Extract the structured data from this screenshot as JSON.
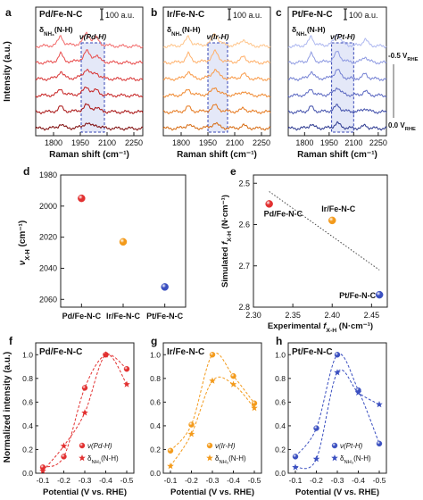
{
  "chart_data": [
    {
      "panel": "a",
      "type": "line",
      "title": "Pd/Fe-N-C",
      "scale_bar": "100 a.u.",
      "xlabel": "Raman shift (cm⁻¹)",
      "ylabel": "Intensity (a.u.)",
      "xlim": [
        1700,
        2300
      ],
      "xticks": [
        1800,
        1950,
        2100,
        2250
      ],
      "band_label": "ν(Pd-H)",
      "band_range": [
        1955,
        2085
      ],
      "peak_label": "δᵃNH₃(N-H)",
      "peak_positions": [
        1840,
        1985,
        2040
      ],
      "trace_count": 6,
      "colors": [
        "#f26b6b",
        "#e84a4a",
        "#d83333",
        "#c62020",
        "#a81111",
        "#7d0808"
      ]
    },
    {
      "panel": "b",
      "type": "line",
      "title": "Ir/Fe-N-C",
      "scale_bar": "100 a.u.",
      "xlabel": "Raman shift (cm⁻¹)",
      "xlim": [
        1700,
        2300
      ],
      "xticks": [
        1800,
        1950,
        2100,
        2250
      ],
      "band_label": "ν(Ir-H)",
      "band_range": [
        1950,
        2060
      ],
      "peak_label": "δᵃNH₃(N-H)",
      "peak_positions": [
        1840,
        1990,
        2150
      ],
      "trace_count": 6,
      "colors": [
        "#ffc58a",
        "#ffb06a",
        "#f99a48",
        "#f08930",
        "#e6791f",
        "#d66a10"
      ]
    },
    {
      "panel": "c",
      "type": "line",
      "title": "Pt/Fe-N-C",
      "scale_bar": "100 a.u.",
      "xlabel": "Raman shift (cm⁻¹)",
      "xlim": [
        1700,
        2300
      ],
      "xticks": [
        1800,
        1950,
        2100,
        2250
      ],
      "band_label": "ν(Pt-H)",
      "band_range": [
        1965,
        2100
      ],
      "peak_label": "δᵃNH₃(N-H)",
      "peak_positions": [
        1840,
        2000,
        2170
      ],
      "trace_count": 6,
      "top_potential": "-0.5 V",
      "top_potential_sub": "RHE",
      "bottom_potential": "0.0 V",
      "bottom_potential_sub": "RHE",
      "colors": [
        "#aeb8f0",
        "#8f9be2",
        "#7481d3",
        "#5b68c1",
        "#4250ab",
        "#2a378f"
      ]
    },
    {
      "panel": "d",
      "type": "scatter",
      "ylabel": "ν",
      "ylabel_sub": "X-H",
      "ylabel_unit": "(cm⁻¹)",
      "categories": [
        "Pd/Fe-N-C",
        "Ir/Fe-N-C",
        "Pt/Fe-N-C"
      ],
      "values": [
        1995,
        2023,
        2052
      ],
      "ylim": [
        1980,
        2065
      ],
      "y_inverted": true,
      "yticks": [
        1980,
        2000,
        2020,
        2040,
        2060
      ],
      "colors": [
        "#e23030",
        "#f39a1b",
        "#3a4fc0"
      ]
    },
    {
      "panel": "e",
      "type": "scatter",
      "xlabel": "Experimental",
      "xlabel_sym": "f",
      "xlabel_sub": "X-H",
      "xlabel_unit": "(N·cm⁻¹)",
      "ylabel": "Simulated",
      "ylabel_sym": "f",
      "ylabel_sub": "X-H",
      "ylabel_unit": "(N·cm⁻¹)",
      "xlim": [
        2.3,
        2.47
      ],
      "ylim": [
        2.48,
        2.8
      ],
      "y_inverted": true,
      "xticks": [
        2.3,
        2.35,
        2.4,
        2.45
      ],
      "yticks": [
        2.5,
        2.6,
        2.7,
        2.8
      ],
      "points": [
        {
          "label": "Pd/Fe-N-C",
          "x": 2.32,
          "y": 2.55,
          "color": "#e23030"
        },
        {
          "label": "Ir/Fe-N-C",
          "x": 2.4,
          "y": 2.59,
          "color": "#f39a1b"
        },
        {
          "label": "Pt/Fe-N-C",
          "x": 2.46,
          "y": 2.77,
          "color": "#3a4fc0"
        }
      ],
      "trend_line": [
        [
          2.32,
          2.52
        ],
        [
          2.46,
          2.71
        ]
      ]
    },
    {
      "panel": "f",
      "type": "scatter",
      "title": "Pd/Fe-N-C",
      "xlabel": "Potential (V vs. RHE)",
      "ylabel": "Normalized intensity (a.u.)",
      "categories": [
        "-0.1",
        "-0.2",
        "-0.3",
        "-0.4",
        "-0.5"
      ],
      "ylim": [
        0.0,
        1.1
      ],
      "yticks": [
        0.0,
        0.2,
        0.4,
        0.6,
        0.8,
        1.0
      ],
      "series": [
        {
          "name": "ν(Pd-H)",
          "marker": "circle",
          "color": "#e23030",
          "x": [
            -0.1,
            -0.2,
            -0.3,
            -0.4,
            -0.5
          ],
          "y": [
            0.05,
            0.14,
            0.72,
            1.0,
            0.88
          ]
        },
        {
          "name": "δᵃNH₃(N-H)",
          "marker": "star",
          "color": "#e23030",
          "x": [
            -0.1,
            -0.2,
            -0.3,
            -0.4,
            -0.5
          ],
          "y": [
            0.02,
            0.23,
            0.51,
            1.0,
            0.75
          ]
        }
      ]
    },
    {
      "panel": "g",
      "type": "scatter",
      "title": "Ir/Fe-N-C",
      "xlabel": "Potential (V vs. RHE)",
      "categories": [
        "-0.1",
        "-0.2",
        "-0.3",
        "-0.4",
        "-0.5"
      ],
      "ylim": [
        0.0,
        1.1
      ],
      "yticks": [
        0.0,
        0.2,
        0.4,
        0.6,
        0.8,
        1.0
      ],
      "series": [
        {
          "name": "ν(Ir-H)",
          "marker": "circle",
          "color": "#f39a1b",
          "x": [
            -0.1,
            -0.2,
            -0.3,
            -0.4,
            -0.5
          ],
          "y": [
            0.19,
            0.41,
            1.0,
            0.82,
            0.59
          ]
        },
        {
          "name": "δᵃNH₃(N-H)",
          "marker": "star",
          "color": "#f39a1b",
          "x": [
            -0.1,
            -0.2,
            -0.3,
            -0.4,
            -0.5
          ],
          "y": [
            0.06,
            0.33,
            0.78,
            0.75,
            0.55
          ]
        }
      ]
    },
    {
      "panel": "h",
      "type": "scatter",
      "title": "Pt/Fe-N-C",
      "xlabel": "Potential (V vs. RHE)",
      "categories": [
        "-0.1",
        "-0.2",
        "-0.3",
        "-0.4",
        "-0.5"
      ],
      "ylim": [
        0.0,
        1.1
      ],
      "yticks": [
        0.0,
        0.2,
        0.4,
        0.6,
        0.8,
        1.0
      ],
      "series": [
        {
          "name": "ν(Pt-H)",
          "marker": "circle",
          "color": "#3a4fc0",
          "x": [
            -0.1,
            -0.2,
            -0.3,
            -0.4,
            -0.5
          ],
          "y": [
            0.14,
            0.38,
            1.0,
            0.7,
            0.25
          ]
        },
        {
          "name": "δᵃNH₃(N-H)",
          "marker": "star",
          "color": "#3a4fc0",
          "x": [
            -0.1,
            -0.2,
            -0.3,
            -0.4,
            -0.5
          ],
          "y": [
            0.05,
            0.12,
            0.85,
            0.68,
            0.58
          ]
        }
      ]
    }
  ]
}
